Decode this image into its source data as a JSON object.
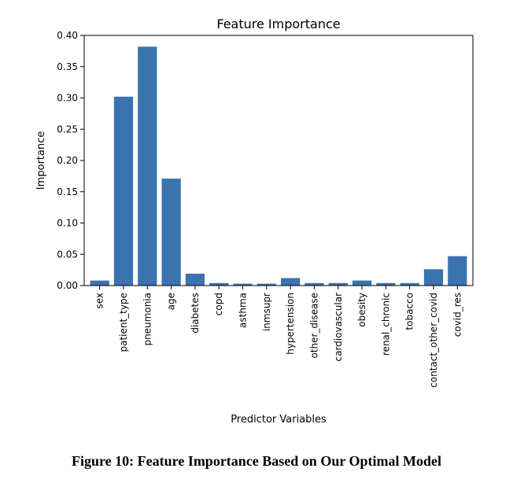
{
  "chart_data": {
    "type": "bar",
    "title": "Feature Importance",
    "xlabel": "Predictor Variables",
    "ylabel": "Importance",
    "ylim": [
      0,
      0.4
    ],
    "yticks": [
      "0.00",
      "0.05",
      "0.10",
      "0.15",
      "0.20",
      "0.25",
      "0.30",
      "0.35",
      "0.40"
    ],
    "grid": false,
    "bar_color": "#3a73b0",
    "categories": [
      "sex",
      "patient_type",
      "pneumonia",
      "age",
      "diabetes",
      "copd",
      "asthma",
      "inmsupr",
      "hypertension",
      "other_disease",
      "cardiovascular",
      "obesity",
      "renal_chronic",
      "tobacco",
      "contact_other_covid",
      "covid_res"
    ],
    "values": [
      0.008,
      0.302,
      0.382,
      0.171,
      0.019,
      0.004,
      0.003,
      0.003,
      0.012,
      0.004,
      0.004,
      0.008,
      0.004,
      0.004,
      0.026,
      0.047
    ]
  },
  "caption": "Figure 10: Feature Importance Based on Our Optimal Model"
}
